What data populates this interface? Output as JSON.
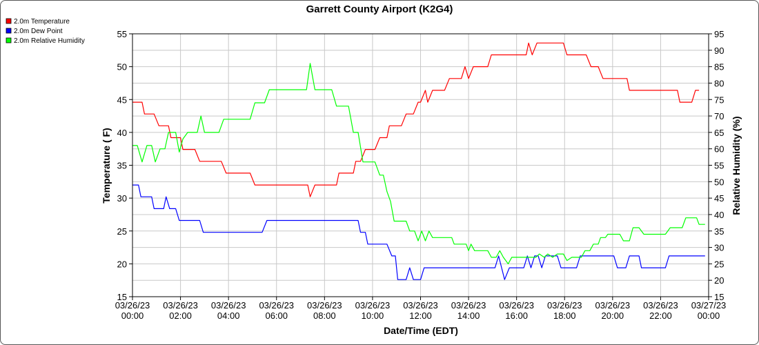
{
  "chart_data": {
    "type": "line",
    "title": "Garrett County Airport (K2G4)",
    "xlabel": "Date/Time (EDT)",
    "ylabel_left": "Temperature ( F)",
    "ylabel_right": "Relative Humidity (%)",
    "ylim_left": [
      15,
      55
    ],
    "ylim_right": [
      15,
      95
    ],
    "yticks_left": [
      "15",
      "20",
      "25",
      "30",
      "35",
      "40",
      "45",
      "50",
      "55"
    ],
    "yticks_right": [
      "15",
      "20",
      "25",
      "30",
      "35",
      "40",
      "45",
      "50",
      "55",
      "60",
      "65",
      "70",
      "75",
      "80",
      "85",
      "90",
      "95"
    ],
    "xlim_hours": [
      0,
      24
    ],
    "xticks": [
      {
        "date": "03/26/23",
        "time": "00:00"
      },
      {
        "date": "03/26/23",
        "time": "02:00"
      },
      {
        "date": "03/26/23",
        "time": "04:00"
      },
      {
        "date": "03/26/23",
        "time": "06:00"
      },
      {
        "date": "03/26/23",
        "time": "08:00"
      },
      {
        "date": "03/26/23",
        "time": "10:00"
      },
      {
        "date": "03/26/23",
        "time": "12:00"
      },
      {
        "date": "03/26/23",
        "time": "14:00"
      },
      {
        "date": "03/26/23",
        "time": "16:00"
      },
      {
        "date": "03/26/23",
        "time": "18:00"
      },
      {
        "date": "03/26/23",
        "time": "20:00"
      },
      {
        "date": "03/26/23",
        "time": "22:00"
      },
      {
        "date": "03/27/23",
        "time": "00:00"
      }
    ],
    "grid": true,
    "legend_position": "top-left",
    "series": [
      {
        "name": "2.0m Temperature",
        "color": "#ff0000",
        "axis": "left",
        "points": [
          [
            0,
            44.6
          ],
          [
            0.4,
            44.6
          ],
          [
            0.5,
            42.8
          ],
          [
            0.9,
            42.8
          ],
          [
            1.1,
            41
          ],
          [
            1.5,
            41
          ],
          [
            1.6,
            39.2
          ],
          [
            2.0,
            39.2
          ],
          [
            2.1,
            37.4
          ],
          [
            2.6,
            37.4
          ],
          [
            2.8,
            35.6
          ],
          [
            3.7,
            35.6
          ],
          [
            3.9,
            33.8
          ],
          [
            4.9,
            33.8
          ],
          [
            5.1,
            32
          ],
          [
            7.3,
            32
          ],
          [
            7.4,
            30.2
          ],
          [
            7.6,
            32
          ],
          [
            8.5,
            32
          ],
          [
            8.6,
            33.8
          ],
          [
            9.2,
            33.8
          ],
          [
            9.3,
            35.6
          ],
          [
            9.5,
            35.6
          ],
          [
            9.7,
            37.4
          ],
          [
            10.1,
            37.4
          ],
          [
            10.3,
            39.2
          ],
          [
            10.6,
            39.2
          ],
          [
            10.7,
            41
          ],
          [
            11.2,
            41
          ],
          [
            11.4,
            42.8
          ],
          [
            11.7,
            42.8
          ],
          [
            11.9,
            44.6
          ],
          [
            12.0,
            44.6
          ],
          [
            12.2,
            46.4
          ],
          [
            12.3,
            44.6
          ],
          [
            12.5,
            46.4
          ],
          [
            13.0,
            46.4
          ],
          [
            13.2,
            48.2
          ],
          [
            13.7,
            48.2
          ],
          [
            13.85,
            50
          ],
          [
            14.0,
            48.2
          ],
          [
            14.2,
            50
          ],
          [
            14.8,
            50
          ],
          [
            14.95,
            51.8
          ],
          [
            16.4,
            51.8
          ],
          [
            16.5,
            53.6
          ],
          [
            16.65,
            51.8
          ],
          [
            16.85,
            53.6
          ],
          [
            17.95,
            53.6
          ],
          [
            18.1,
            51.8
          ],
          [
            18.9,
            51.8
          ],
          [
            19.1,
            50
          ],
          [
            19.4,
            50
          ],
          [
            19.6,
            48.2
          ],
          [
            20.6,
            48.2
          ],
          [
            20.7,
            46.4
          ],
          [
            22.7,
            46.4
          ],
          [
            22.8,
            44.6
          ],
          [
            23.3,
            44.6
          ],
          [
            23.45,
            46.4
          ],
          [
            23.6,
            46.4
          ]
        ]
      },
      {
        "name": "2.0m Dew Point",
        "color": "#0000ff",
        "axis": "left",
        "points": [
          [
            0,
            32
          ],
          [
            0.25,
            32
          ],
          [
            0.35,
            30.2
          ],
          [
            0.8,
            30.2
          ],
          [
            0.9,
            28.4
          ],
          [
            1.3,
            28.4
          ],
          [
            1.4,
            30.2
          ],
          [
            1.55,
            28.4
          ],
          [
            1.8,
            28.4
          ],
          [
            1.95,
            26.6
          ],
          [
            2.8,
            26.6
          ],
          [
            2.95,
            24.8
          ],
          [
            5.4,
            24.8
          ],
          [
            5.6,
            26.6
          ],
          [
            9.4,
            26.6
          ],
          [
            9.5,
            24.8
          ],
          [
            9.7,
            24.8
          ],
          [
            9.8,
            23
          ],
          [
            10.6,
            23
          ],
          [
            10.8,
            21.2
          ],
          [
            10.95,
            21.2
          ],
          [
            11.05,
            17.6
          ],
          [
            11.4,
            17.6
          ],
          [
            11.55,
            19.4
          ],
          [
            11.7,
            17.6
          ],
          [
            12.0,
            17.6
          ],
          [
            12.15,
            19.4
          ],
          [
            15.1,
            19.4
          ],
          [
            15.25,
            21.2
          ],
          [
            15.5,
            17.6
          ],
          [
            15.7,
            19.4
          ],
          [
            16.3,
            19.4
          ],
          [
            16.45,
            21.2
          ],
          [
            16.6,
            19.4
          ],
          [
            16.75,
            21.2
          ],
          [
            16.9,
            21.2
          ],
          [
            17.05,
            19.4
          ],
          [
            17.2,
            21.2
          ],
          [
            17.7,
            21.2
          ],
          [
            17.85,
            19.4
          ],
          [
            18.5,
            19.4
          ],
          [
            18.65,
            21.2
          ],
          [
            20.05,
            21.2
          ],
          [
            20.2,
            19.4
          ],
          [
            20.55,
            19.4
          ],
          [
            20.7,
            21.2
          ],
          [
            21.1,
            21.2
          ],
          [
            21.2,
            19.4
          ],
          [
            22.2,
            19.4
          ],
          [
            22.35,
            21.2
          ],
          [
            23.85,
            21.2
          ]
        ]
      },
      {
        "name": "2.0m Relative Humidity",
        "color": "#00ff00",
        "axis": "right",
        "points": [
          [
            0,
            61
          ],
          [
            0.2,
            61
          ],
          [
            0.4,
            56
          ],
          [
            0.6,
            61
          ],
          [
            0.8,
            61
          ],
          [
            0.95,
            56
          ],
          [
            1.15,
            60
          ],
          [
            1.35,
            60
          ],
          [
            1.5,
            65
          ],
          [
            1.8,
            65
          ],
          [
            1.95,
            59
          ],
          [
            2.1,
            63
          ],
          [
            2.3,
            65
          ],
          [
            2.7,
            65
          ],
          [
            2.85,
            70
          ],
          [
            3.0,
            65
          ],
          [
            3.6,
            65
          ],
          [
            3.8,
            69
          ],
          [
            4.9,
            69
          ],
          [
            5.1,
            74
          ],
          [
            5.5,
            74
          ],
          [
            5.7,
            78
          ],
          [
            7.25,
            78
          ],
          [
            7.4,
            86
          ],
          [
            7.6,
            78
          ],
          [
            8.3,
            78
          ],
          [
            8.5,
            73
          ],
          [
            9.0,
            73
          ],
          [
            9.2,
            65
          ],
          [
            9.4,
            65
          ],
          [
            9.6,
            56
          ],
          [
            10.1,
            56
          ],
          [
            10.3,
            52
          ],
          [
            10.45,
            52
          ],
          [
            10.6,
            47
          ],
          [
            10.75,
            44
          ],
          [
            10.9,
            38
          ],
          [
            11.4,
            38
          ],
          [
            11.55,
            35
          ],
          [
            11.75,
            35
          ],
          [
            11.9,
            32
          ],
          [
            12.05,
            35
          ],
          [
            12.2,
            32
          ],
          [
            12.35,
            35
          ],
          [
            12.5,
            33
          ],
          [
            13.3,
            33
          ],
          [
            13.4,
            31
          ],
          [
            13.9,
            31
          ],
          [
            14.0,
            29
          ],
          [
            14.1,
            31
          ],
          [
            14.25,
            29
          ],
          [
            14.8,
            29
          ],
          [
            14.95,
            27
          ],
          [
            15.15,
            27
          ],
          [
            15.3,
            29
          ],
          [
            15.45,
            27
          ],
          [
            15.65,
            25
          ],
          [
            15.8,
            27
          ],
          [
            16.8,
            27
          ],
          [
            16.95,
            28
          ],
          [
            17.15,
            27
          ],
          [
            17.3,
            28
          ],
          [
            17.5,
            27
          ],
          [
            17.7,
            28
          ],
          [
            17.95,
            28
          ],
          [
            18.1,
            26
          ],
          [
            18.3,
            27
          ],
          [
            18.7,
            27
          ],
          [
            18.85,
            29
          ],
          [
            19.05,
            29
          ],
          [
            19.2,
            31
          ],
          [
            19.4,
            31
          ],
          [
            19.5,
            33
          ],
          [
            19.7,
            33
          ],
          [
            19.8,
            34
          ],
          [
            20.3,
            34
          ],
          [
            20.45,
            32
          ],
          [
            20.7,
            32
          ],
          [
            20.85,
            36
          ],
          [
            21.1,
            36
          ],
          [
            21.3,
            34
          ],
          [
            22.2,
            34
          ],
          [
            22.4,
            36
          ],
          [
            22.9,
            36
          ],
          [
            23.05,
            39
          ],
          [
            23.5,
            39
          ],
          [
            23.6,
            37
          ],
          [
            23.85,
            37
          ]
        ]
      }
    ]
  }
}
